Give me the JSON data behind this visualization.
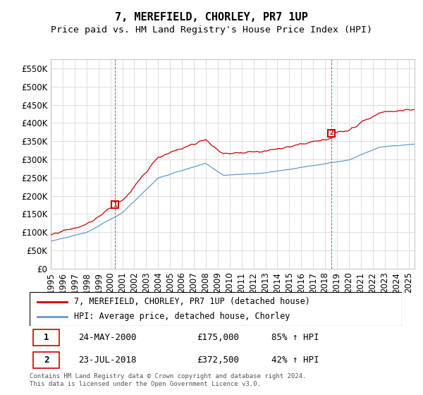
{
  "title": "7, MEREFIELD, CHORLEY, PR7 1UP",
  "subtitle": "Price paid vs. HM Land Registry's House Price Index (HPI)",
  "ylim": [
    0,
    575000
  ],
  "yticks": [
    0,
    50000,
    100000,
    150000,
    200000,
    250000,
    300000,
    350000,
    400000,
    450000,
    500000,
    550000
  ],
  "ytick_labels": [
    "£0",
    "£50K",
    "£100K",
    "£150K",
    "£200K",
    "£250K",
    "£300K",
    "£350K",
    "£400K",
    "£450K",
    "£500K",
    "£550K"
  ],
  "xlim_start": 1995.0,
  "xlim_end": 2025.5,
  "transaction1_x": 2000.39,
  "transaction1_y": 175000,
  "transaction1_label": "1",
  "transaction2_x": 2018.55,
  "transaction2_y": 372500,
  "transaction2_label": "2",
  "red_line_color": "#cc0000",
  "blue_line_color": "#6699cc",
  "legend_red_label": "7, MEREFIELD, CHORLEY, PR7 1UP (detached house)",
  "legend_blue_label": "HPI: Average price, detached house, Chorley",
  "annotation1_label": "1",
  "annotation1_date": "24-MAY-2000",
  "annotation1_price": "£175,000",
  "annotation1_hpi": "85% ↑ HPI",
  "annotation2_label": "2",
  "annotation2_date": "23-JUL-2018",
  "annotation2_price": "£372,500",
  "annotation2_hpi": "42% ↑ HPI",
  "footer": "Contains HM Land Registry data © Crown copyright and database right 2024.\nThis data is licensed under the Open Government Licence v3.0.",
  "background_color": "#ffffff",
  "grid_color": "#dddddd",
  "title_fontsize": 11,
  "subtitle_fontsize": 9.5,
  "tick_fontsize": 8.5
}
